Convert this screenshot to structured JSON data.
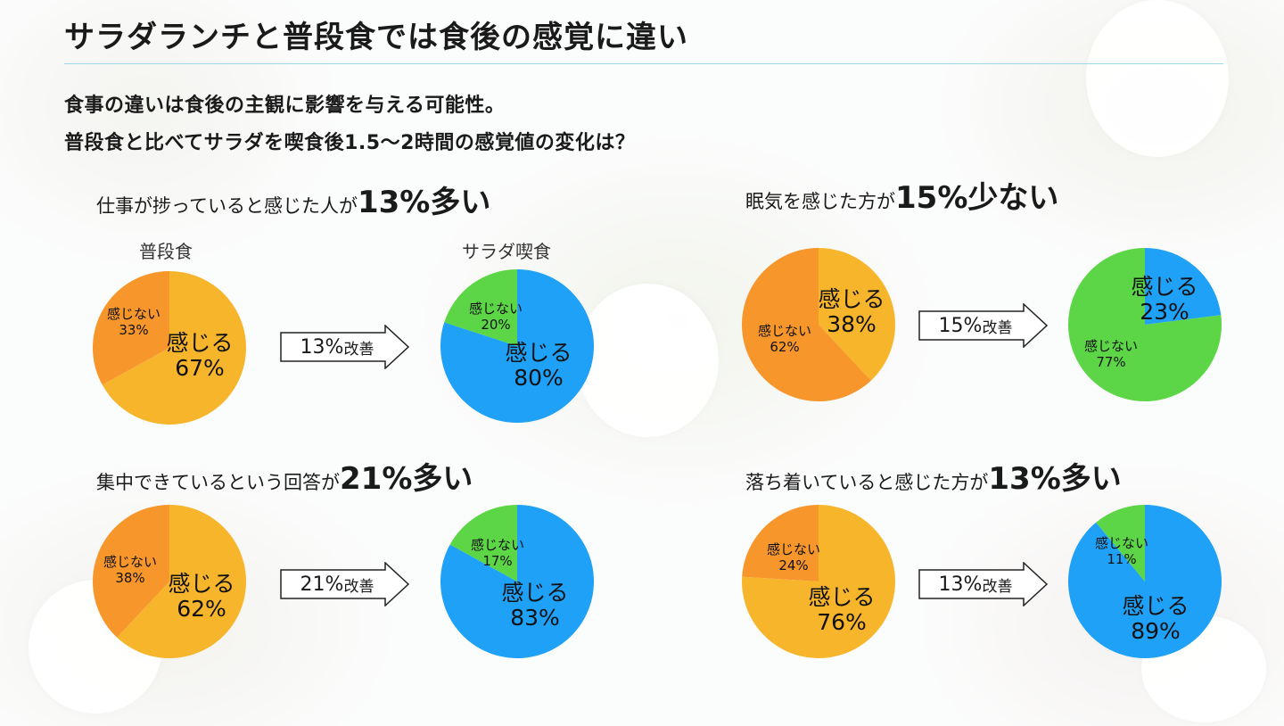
{
  "title": "サラダランチと普段食では食後の感覚に違い",
  "subtitle_lines": [
    "食事の違いは食後の主観に影響を与える可能性。",
    "普段食と比べてサラダを喫食後1.5〜2時間の感覚値の変化は？"
  ],
  "column_labels": {
    "regular": "普段食",
    "salad": "サラダ喫食"
  },
  "colors": {
    "feel_regular": "#f7b52b",
    "not_feel_regular": "#f7962b",
    "feel_salad": "#1ea1f7",
    "not_feel_salad": "#5cd646",
    "sleepy_feel_salad": "#1ea1f7",
    "sleepy_not_feel_salad": "#5cd646"
  },
  "chart_data": [
    {
      "type": "pie",
      "heading": {
        "prefix": "仕事が捗っていると感じた人が",
        "emphasis": "13%多い"
      },
      "improvement": {
        "value": "13%",
        "suffix": "改善"
      },
      "regular": {
        "yes_label": "感じる",
        "yes": 67,
        "no_label": "感じない",
        "no": 33
      },
      "salad": {
        "yes_label": "感じる",
        "yes": 80,
        "no_label": "感じない",
        "no": 20
      }
    },
    {
      "type": "pie",
      "heading": {
        "prefix": "眠気を感じた方が",
        "emphasis": "15%少ない"
      },
      "improvement": {
        "value": "15%",
        "suffix": "改善"
      },
      "regular": {
        "yes_label": "感じる",
        "yes": 38,
        "no_label": "感じない",
        "no": 62
      },
      "salad": {
        "yes_label": "感じる",
        "yes": 23,
        "no_label": "感じない",
        "no": 77
      }
    },
    {
      "type": "pie",
      "heading": {
        "prefix": "集中できているという回答が",
        "emphasis": "21%多い"
      },
      "improvement": {
        "value": "21%",
        "suffix": "改善"
      },
      "regular": {
        "yes_label": "感じる",
        "yes": 62,
        "no_label": "感じない",
        "no": 38
      },
      "salad": {
        "yes_label": "感じる",
        "yes": 83,
        "no_label": "感じない",
        "no": 17
      }
    },
    {
      "type": "pie",
      "heading": {
        "prefix": "落ち着いていると感じた方が",
        "emphasis": "13%多い"
      },
      "improvement": {
        "value": "13%",
        "suffix": "改善"
      },
      "regular": {
        "yes_label": "感じる",
        "yes": 76,
        "no_label": "感じない",
        "no": 24
      },
      "salad": {
        "yes_label": "感じる",
        "yes": 89,
        "no_label": "感じない",
        "no": 11
      }
    }
  ]
}
